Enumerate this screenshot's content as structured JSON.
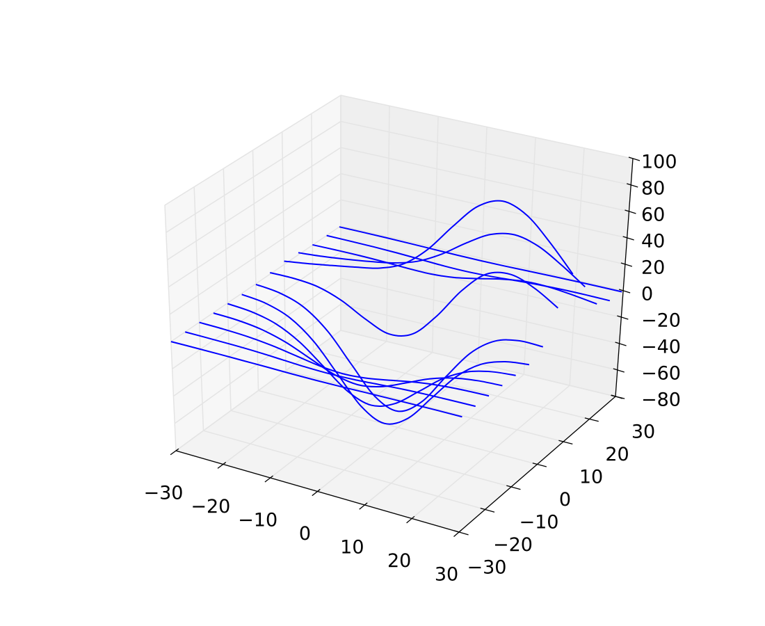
{
  "chart_data": {
    "type": "wireframe3d",
    "color": "#0000ff",
    "grid": true,
    "x": [
      -30,
      -25,
      -20,
      -15,
      -10,
      -5,
      0,
      5,
      10,
      15,
      20,
      25,
      30
    ],
    "series": [
      {
        "y": -30,
        "values": [
          0,
          0,
          -0.1,
          -0.3,
          -0.5,
          -0.8,
          -0.9,
          -0.8,
          -0.5,
          -0.3,
          -0.1,
          0,
          0
        ]
      },
      {
        "y": -25,
        "values": [
          0,
          -0.2,
          -0.5,
          -1.1,
          -2.1,
          -3.1,
          -3.5,
          -3.1,
          -2.1,
          -1.1,
          -0.5,
          -0.2,
          0
        ]
      },
      {
        "y": -20,
        "values": [
          -0.1,
          -0.5,
          -1.5,
          -3.5,
          -6.5,
          -9.5,
          -10.8,
          -9.5,
          -6.5,
          -3.5,
          -1.5,
          -0.5,
          -0.1
        ]
      },
      {
        "y": -15,
        "values": [
          -0.3,
          -1.1,
          -3.5,
          -8.4,
          -15.7,
          -22.8,
          -25.9,
          -22.8,
          -15.7,
          -8.4,
          -3.5,
          -1.1,
          -0.3
        ]
      },
      {
        "y": -10,
        "values": [
          -0.5,
          -2.1,
          -6.5,
          -15.7,
          -29.3,
          -42.6,
          -48.3,
          -42.6,
          -29.3,
          -15.6,
          -6.5,
          -2.1,
          -0.5
        ]
      },
      {
        "y": -5,
        "values": [
          -0.8,
          -3.0,
          -9.3,
          -22.5,
          -42.1,
          -61.3,
          -69.3,
          -60.9,
          -41.4,
          -21.7,
          -8.6,
          -2.4,
          -0.3
        ]
      },
      {
        "y": 0,
        "values": [
          -0.5,
          -2.6,
          -8.8,
          -22.3,
          -42.4,
          -61.5,
          -68.1,
          -56.7,
          -33.9,
          -12.3,
          0.7,
          5.2,
          5.0
        ]
      },
      {
        "y": 5,
        "values": [
          1.1,
          1.1,
          -0.8,
          -6.8,
          -16.2,
          -23.0,
          -18.7,
          -1.1,
          21.7,
          38.1,
          42.0,
          36.0,
          25.7
        ]
      },
      {
        "y": 10,
        "values": [
          2.5,
          4.9,
          7.8,
          10.8,
          14.3,
          21.7,
          36.7,
          57.8,
          76.8,
          84.7,
          78.4,
          62.2,
          43.1
        ]
      },
      {
        "y": 15,
        "values": [
          1.6,
          3.1,
          5.2,
          7.7,
          10.8,
          16.2,
          25.7,
          38.1,
          48.7,
          52.5,
          48.0,
          37.9,
          26.2
        ]
      },
      {
        "y": 20,
        "values": [
          0.3,
          0.5,
          0.5,
          0.1,
          -0.6,
          -0.8,
          0.7,
          4.1,
          7.8,
          10.1,
          10.0,
          8.2,
          5.8
        ]
      },
      {
        "y": 25,
        "values": [
          0,
          -0.1,
          -0.3,
          -0.8,
          -1.6,
          -2.4,
          -2.6,
          -2.0,
          -0.9,
          0,
          0.5,
          0.6,
          0.4
        ]
      },
      {
        "y": 29.5,
        "values": [
          0,
          0,
          -0.1,
          -0.3,
          -0.6,
          -0.9,
          -1.0,
          -0.9,
          -0.6,
          -0.3,
          -0.1,
          0,
          0
        ]
      }
    ],
    "xlim": [
      -30,
      30
    ],
    "ylim": [
      -30,
      30
    ],
    "zlim": [
      -80,
      100
    ],
    "xticks": [
      {
        "value": -30,
        "label": "−30"
      },
      {
        "value": -20,
        "label": "−20"
      },
      {
        "value": -10,
        "label": "−10"
      },
      0,
      10,
      20,
      30
    ],
    "yticks": [
      {
        "value": -30,
        "label": "−30"
      },
      {
        "value": -20,
        "label": "−20"
      },
      {
        "value": -10,
        "label": "−10"
      },
      0,
      10,
      20,
      30
    ],
    "zticks": [
      {
        "value": -80,
        "label": "−80"
      },
      {
        "value": -60,
        "label": "−60"
      },
      {
        "value": -40,
        "label": "−40"
      },
      {
        "value": -20,
        "label": "−20"
      },
      0,
      20,
      40,
      60,
      80,
      100
    ]
  }
}
